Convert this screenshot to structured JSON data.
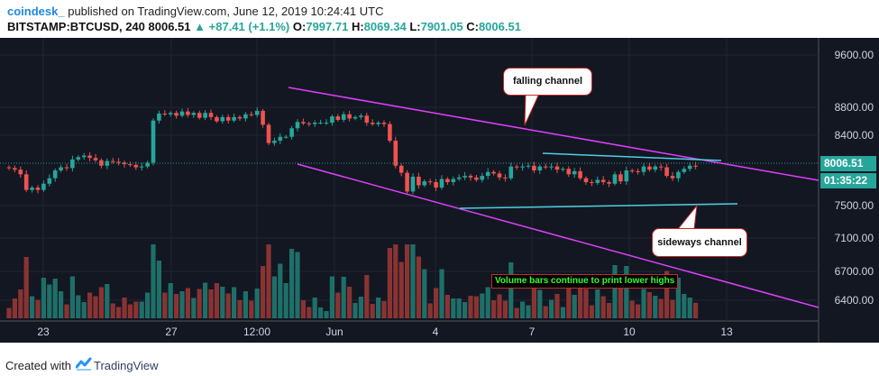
{
  "header": {
    "author": "coindesk_",
    "published_text": "published on TradingView.com, June 12, 2019 10:24:41 UTC",
    "symbol": "BITSTAMP:BTCUSD, 240",
    "last": "8006.51",
    "change_arrow": "▲",
    "change": "+87.41 (+1.1%)",
    "open_label": "O:",
    "open": "7997.71",
    "high_label": "H:",
    "high": "8069.34",
    "low_label": "L:",
    "low": "7901.05",
    "close_label": "C:",
    "close": "8006.51"
  },
  "price_axis": {
    "ticks": [
      "9600.00",
      "8800.00",
      "8400.00",
      "7500.00",
      "7100.00",
      "6700.00",
      "6400.00"
    ],
    "last_price": "8006.51",
    "countdown": "01:35:22"
  },
  "time_axis": {
    "ticks": [
      "23",
      "27",
      "12:00",
      "Jun",
      "4",
      "7",
      "10",
      "13"
    ]
  },
  "annotations": {
    "falling_channel": "falling channel",
    "sideways_channel": "sideways channel",
    "volume_note": "Volume bars continue to print lower highs"
  },
  "footer": {
    "created_with": "Created with",
    "brand": "TradingView"
  },
  "colors": {
    "background": "#131722",
    "up": "#26a69a",
    "down": "#ef5350",
    "channel": "#e040fb",
    "sideways": "#4dd0e1"
  },
  "chart_data": {
    "type": "candlestick",
    "symbol": "BITSTAMP:BTCUSD",
    "interval": "240",
    "price_axis_ticks": [
      9600,
      8800,
      8400,
      7500,
      7100,
      6700,
      6400
    ],
    "time_axis_ticks": [
      "23",
      "27",
      "12:00",
      "Jun",
      "4",
      "7",
      "10",
      "13"
    ],
    "last_price": 8006.51,
    "ohlc_last": {
      "open": 7997.71,
      "high": 8069.34,
      "low": 7901.05,
      "close": 8006.51
    },
    "closes": [
      7980,
      7960,
      7900,
      7700,
      7730,
      7700,
      7780,
      7850,
      7950,
      7990,
      7980,
      8090,
      8120,
      8140,
      8110,
      8080,
      8010,
      8070,
      8060,
      8050,
      8030,
      8020,
      7990,
      8000,
      8050,
      8610,
      8710,
      8700,
      8720,
      8680,
      8740,
      8690,
      8720,
      8650,
      8720,
      8660,
      8600,
      8660,
      8610,
      8660,
      8640,
      8700,
      8690,
      8750,
      8550,
      8300,
      8330,
      8380,
      8380,
      8500,
      8590,
      8570,
      8560,
      8580,
      8580,
      8580,
      8670,
      8620,
      8700,
      8640,
      8660,
      8680,
      8580,
      8560,
      8580,
      8560,
      8330,
      8010,
      7920,
      7680,
      7870,
      7760,
      7810,
      7800,
      7730,
      7840,
      7800,
      7840,
      7860,
      7880,
      7860,
      7830,
      7880,
      7930,
      7910,
      7860,
      7850,
      8000,
      7990,
      8000,
      8010,
      7950,
      8000,
      7990,
      8000,
      7960,
      7970,
      7900,
      7940,
      7850,
      7800,
      7790,
      7830,
      7800,
      7780,
      7900,
      7810,
      7950,
      7940,
      7930,
      8000,
      7960,
      8000,
      7990,
      7880,
      7850,
      7930,
      7970,
      8010,
      8006.51
    ]
  }
}
